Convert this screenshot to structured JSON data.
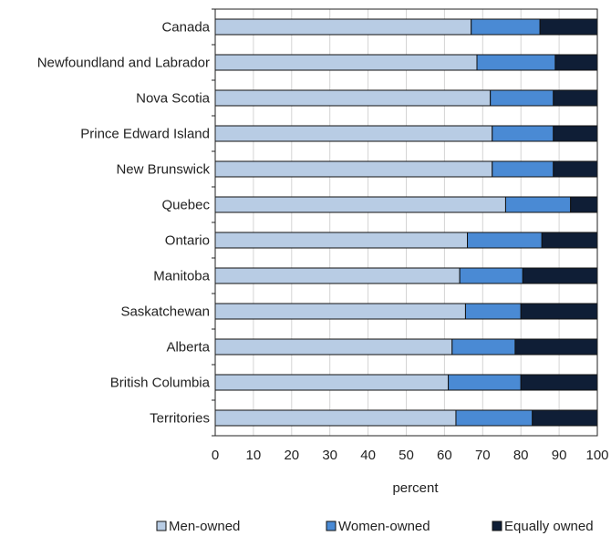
{
  "chart_data": {
    "type": "bar",
    "orientation": "horizontal",
    "stacked": true,
    "categories": [
      "Canada",
      "Newfoundland and Labrador",
      "Nova Scotia",
      "Prince Edward Island",
      "New Brunswick",
      "Quebec",
      "Ontario",
      "Manitoba",
      "Saskatchewan",
      "Alberta",
      "British Columbia",
      "Territories"
    ],
    "series": [
      {
        "name": "Men-owned",
        "color": "#b8cce4",
        "values": [
          67.0,
          68.5,
          72.0,
          72.5,
          72.5,
          76.0,
          66.0,
          64.0,
          65.5,
          62.0,
          61.0,
          63.0
        ]
      },
      {
        "name": "Women-owned",
        "color": "#4a8ad4",
        "values": [
          18.0,
          20.5,
          16.5,
          16.0,
          16.0,
          17.0,
          19.5,
          16.5,
          14.5,
          16.5,
          19.0,
          20.0
        ]
      },
      {
        "name": "Equally owned",
        "color": "#0f1e36",
        "values": [
          15.0,
          11.0,
          11.5,
          11.5,
          11.5,
          7.0,
          14.5,
          19.5,
          20.0,
          21.5,
          20.0,
          17.0
        ]
      }
    ],
    "xlabel": "percent",
    "ylabel": "",
    "xlim": [
      0,
      100
    ],
    "xticks": [
      "0",
      "10",
      "20",
      "30",
      "40",
      "50",
      "60",
      "70",
      "80",
      "90",
      "100"
    ],
    "grid": "vertical",
    "legend_position": "bottom"
  }
}
